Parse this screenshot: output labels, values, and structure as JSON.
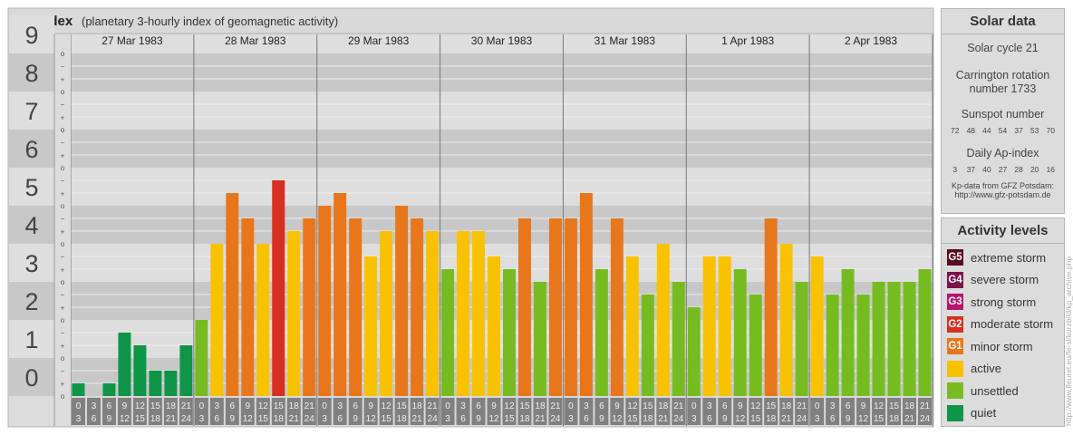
{
  "header": {
    "title": "Kp-index",
    "subtitle": "(planetary 3-hourly index of geomagnetic activity)"
  },
  "chart_data": {
    "type": "bar",
    "ylim": [
      0,
      9
    ],
    "y_ticks": [
      "0",
      "1",
      "2",
      "3",
      "4",
      "5",
      "6",
      "7",
      "8",
      "9"
    ],
    "sub_ticks": [
      "+",
      "o",
      "−"
    ],
    "days": [
      "27 Mar 1983",
      "28 Mar 1983",
      "29 Mar 1983",
      "30 Mar 1983",
      "31 Mar 1983",
      "1 Apr 1983",
      "2 Apr 1983"
    ],
    "interval_start": [
      "0",
      "3",
      "6",
      "9",
      "12",
      "15",
      "18",
      "21"
    ],
    "interval_end": [
      "3",
      "6",
      "9",
      "12",
      "15",
      "18",
      "21",
      "24"
    ],
    "values": [
      [
        0.333,
        0.0,
        0.333,
        1.667,
        1.333,
        0.667,
        0.667,
        1.333
      ],
      [
        2.0,
        4.0,
        5.333,
        4.667,
        4.0,
        5.667,
        4.333,
        4.667
      ],
      [
        5.0,
        5.333,
        4.667,
        3.667,
        4.333,
        5.0,
        4.667,
        4.333
      ],
      [
        3.333,
        4.333,
        4.333,
        3.667,
        3.333,
        4.667,
        3.0,
        4.667
      ],
      [
        4.667,
        5.333,
        3.333,
        4.667,
        3.667,
        2.667,
        4.0,
        3.0
      ],
      [
        2.333,
        3.667,
        3.667,
        3.333,
        2.667,
        4.667,
        4.0,
        3.0
      ],
      [
        3.667,
        2.667,
        3.333,
        2.667,
        3.0,
        3.0,
        3.0,
        3.333
      ]
    ],
    "colors": {
      "quiet": "#0f9548",
      "unsettled": "#76bc21",
      "active": "#f8c200",
      "minor": "#e8761b",
      "moderate": "#d62e20"
    },
    "legend_placement": "right"
  },
  "solar": {
    "title": "Solar data",
    "cycle": "Solar cycle 21",
    "carrington_1": "Carrington rotation",
    "carrington_2": "number 1733",
    "sunspot_title": "Sunspot number",
    "sunspot_values": [
      "72",
      "48",
      "44",
      "54",
      "37",
      "53",
      "70"
    ],
    "ap_title": "Daily Ap-index",
    "ap_values": [
      "3",
      "37",
      "40",
      "27",
      "28",
      "20",
      "16"
    ],
    "source_1": "Kp-data from GFZ Potsdam:",
    "source_2": "http://www.gfz-potsdam.de"
  },
  "activity": {
    "title": "Activity levels",
    "levels": [
      {
        "badge": "G5",
        "label": "extreme storm",
        "color": "#5a0a1e"
      },
      {
        "badge": "G4",
        "label": "severe storm",
        "color": "#7d1348"
      },
      {
        "badge": "G3",
        "label": "strong storm",
        "color": "#b5156a"
      },
      {
        "badge": "G2",
        "label": "moderate storm",
        "color": "#d62e20"
      },
      {
        "badge": "G1",
        "label": "minor storm",
        "color": "#e8761b"
      },
      {
        "badge": "",
        "label": "active",
        "color": "#f8c200"
      },
      {
        "badge": "",
        "label": "unsettled",
        "color": "#76bc21"
      },
      {
        "badge": "",
        "label": "quiet",
        "color": "#0f9548"
      }
    ]
  },
  "watermark": "http://www.fleuret.eu/fe-sl/kurzbild/kp_archive.php"
}
